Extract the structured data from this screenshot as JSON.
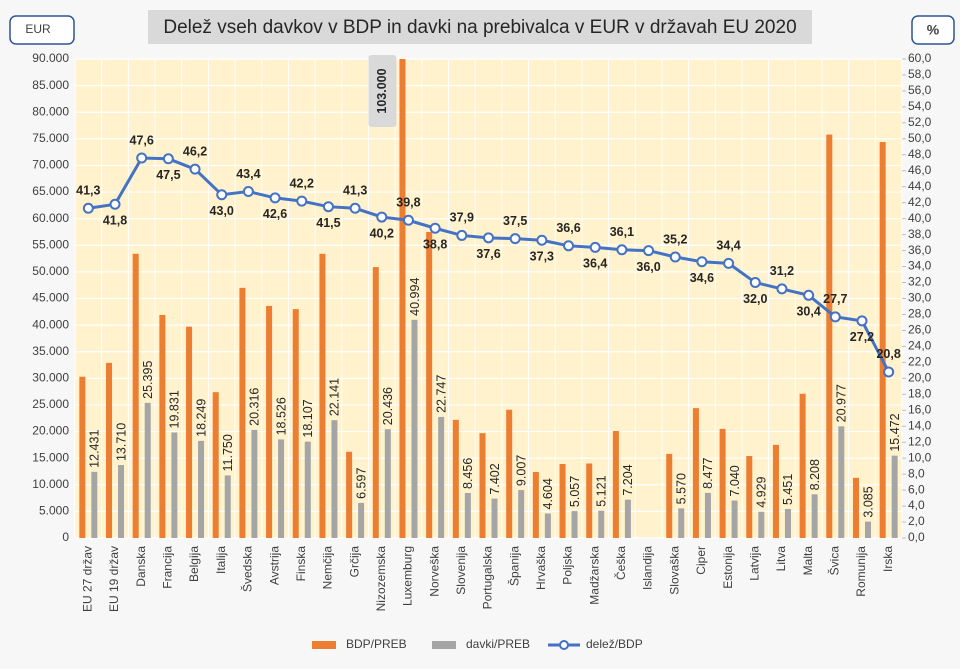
{
  "chart_data": {
    "type": "bar_line",
    "title": "Delež vseh davkov v BDP in davki na prebivalca v EUR v državah EU 2020",
    "y_label": "EUR",
    "y2_label": "%",
    "categories": [
      "EU 27 držav",
      "EU 19 držav",
      "Danska",
      "Francija",
      "Belgija",
      "Italija",
      "Švedska",
      "Avstrija",
      "Finska",
      "Nemčija",
      "Grčija",
      "Nizozemska",
      "Luxemburg",
      "Norveška",
      "Slovenija",
      "Portugalska",
      "Španija",
      "Hrvaška",
      "Poljska",
      "Madžarska",
      "Češka",
      "Islandija",
      "Slovaška",
      "Ciper",
      "Estonija",
      "Latvija",
      "Litva",
      "Malta",
      "Švica",
      "Romunija",
      "Irska"
    ],
    "series": [
      {
        "name": "BDP/PREB",
        "kind": "bar",
        "color": "#ed7d31",
        "values": [
          30300,
          32900,
          53400,
          41900,
          39700,
          27400,
          47000,
          43600,
          43000,
          53400,
          16200,
          50900,
          103000,
          57500,
          22200,
          19700,
          24100,
          12400,
          13900,
          14000,
          20100,
          null,
          15800,
          24400,
          20500,
          15400,
          17500,
          27100,
          75800,
          11300,
          74400
        ],
        "value_labels": [
          null,
          null,
          null,
          null,
          null,
          null,
          null,
          null,
          null,
          null,
          null,
          null,
          "103.000",
          null,
          null,
          null,
          null,
          null,
          null,
          null,
          null,
          null,
          null,
          null,
          null,
          null,
          null,
          null,
          null,
          null,
          null
        ]
      },
      {
        "name": "davki/PREB",
        "kind": "bar",
        "color": "#a5a5a5",
        "values": [
          12431,
          13710,
          25395,
          19831,
          18249,
          11750,
          20316,
          18526,
          18107,
          22141,
          6597,
          20436,
          40994,
          22747,
          8456,
          7402,
          9007,
          4604,
          5057,
          5121,
          7204,
          null,
          5570,
          8477,
          7040,
          4929,
          5451,
          8208,
          20977,
          3085,
          15472
        ],
        "value_labels": [
          "12.431",
          "13.710",
          "25.395",
          "19.831",
          "18.249",
          "11.750",
          "20.316",
          "18.526",
          "18.107",
          "22.141",
          "6.597",
          "20.436",
          "40.994",
          "22.747",
          "8.456",
          "7.402",
          "9.007",
          "4.604",
          "5.057",
          "5.121",
          "7.204",
          null,
          "5.570",
          "8.477",
          "7.040",
          "4.929",
          "5.451",
          "8.208",
          "20.977",
          "3.085",
          "15.472"
        ]
      },
      {
        "name": "delež/BDP",
        "kind": "line",
        "axis": "y2",
        "color": "#4472c4",
        "values": [
          41.3,
          41.8,
          47.6,
          47.5,
          46.2,
          43.0,
          43.4,
          42.6,
          42.2,
          41.5,
          41.3,
          40.2,
          39.8,
          38.8,
          37.9,
          37.6,
          37.5,
          37.3,
          36.6,
          36.4,
          36.1,
          36.0,
          35.2,
          34.6,
          34.4,
          32.0,
          31.2,
          30.4,
          27.7,
          27.2,
          20.8
        ],
        "value_labels": [
          "41,3",
          "41,8",
          "47,6",
          "47,5",
          "46,2",
          "43,0",
          "43,4",
          "42,6",
          "42,2",
          "41,5",
          "41,3",
          "40,2",
          "39,8",
          "38,8",
          "37,9",
          "37,6",
          "37,5",
          "37,3",
          "36,6",
          "36,4",
          "36,1",
          "36,0",
          "35,2",
          "34,6",
          "34,4",
          "32,0",
          "31,2",
          "30,4",
          "27,7",
          "27,2",
          "20,8"
        ]
      }
    ],
    "ylim": [
      0,
      90000
    ],
    "yticks": [
      0,
      {
        "value": 5000,
        "label": "5.000"
      },
      {
        "value": 10000,
        "label": "10.000"
      },
      {
        "value": 15000,
        "label": "15.000"
      },
      {
        "value": 20000,
        "label": "20.000"
      },
      {
        "value": 25000,
        "label": "25.000"
      },
      {
        "value": 30000,
        "label": "30.000"
      },
      {
        "value": 35000,
        "label": "35.000"
      },
      {
        "value": 40000,
        "label": "40.000"
      },
      {
        "value": 45000,
        "label": "45.000"
      },
      {
        "value": 50000,
        "label": "50.000"
      },
      {
        "value": 55000,
        "label": "55.000"
      },
      {
        "value": 60000,
        "label": "60.000"
      },
      {
        "value": 65000,
        "label": "65.000"
      },
      {
        "value": 70000,
        "label": "70.000"
      },
      {
        "value": 75000,
        "label": "75.000"
      },
      {
        "value": 80000,
        "label": "80.000"
      },
      {
        "value": 85000,
        "label": "85.000"
      },
      {
        "value": 90000,
        "label": "90.000"
      }
    ],
    "y2lim": [
      0,
      60
    ],
    "y2ticks": [
      {
        "value": 0,
        "label": "0,0"
      },
      {
        "value": 2,
        "label": "2,0"
      },
      {
        "value": 4,
        "label": "4,0"
      },
      {
        "value": 6,
        "label": "6,0"
      },
      {
        "value": 8,
        "label": "8,0"
      },
      {
        "value": 10,
        "label": "10,0"
      },
      {
        "value": 12,
        "label": "12,0"
      },
      {
        "value": 14,
        "label": "14,0"
      },
      {
        "value": 16,
        "label": "16,0"
      },
      {
        "value": 18,
        "label": "18,0"
      },
      {
        "value": 20,
        "label": "20,0"
      },
      {
        "value": 22,
        "label": "22,0"
      },
      {
        "value": 24,
        "label": "24,0"
      },
      {
        "value": 26,
        "label": "26,0"
      },
      {
        "value": 28,
        "label": "28,0"
      },
      {
        "value": 30,
        "label": "30,0"
      },
      {
        "value": 32,
        "label": "32,0"
      },
      {
        "value": 34,
        "label": "34,0"
      },
      {
        "value": 36,
        "label": "36,0"
      },
      {
        "value": 38,
        "label": "38,0"
      },
      {
        "value": 40,
        "label": "40,0"
      },
      {
        "value": 42,
        "label": "42,0"
      },
      {
        "value": 44,
        "label": "44,0"
      },
      {
        "value": 46,
        "label": "46,0"
      },
      {
        "value": 48,
        "label": "48,0"
      },
      {
        "value": 50,
        "label": "50,0"
      },
      {
        "value": 52,
        "label": "52,0"
      },
      {
        "value": 54,
        "label": "54,0"
      },
      {
        "value": 56,
        "label": "56,0"
      },
      {
        "value": 58,
        "label": "58,0"
      },
      {
        "value": 60,
        "label": "60,0"
      }
    ],
    "grid": true,
    "legend": "bottom"
  }
}
